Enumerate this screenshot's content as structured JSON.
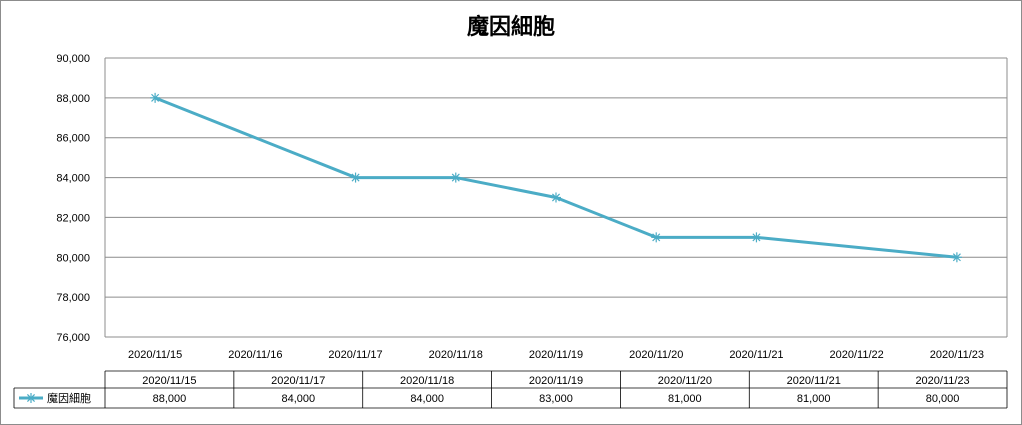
{
  "chart_data": {
    "type": "line",
    "title": "魔因細胞",
    "xlabel": "",
    "ylabel": "",
    "x": [
      "2020/11/15",
      "2020/11/16",
      "2020/11/17",
      "2020/11/18",
      "2020/11/19",
      "2020/11/20",
      "2020/11/21",
      "2020/11/22",
      "2020/11/23"
    ],
    "ylim": [
      76000,
      90000
    ],
    "y_ticks": [
      "76,000",
      "78,000",
      "80,000",
      "82,000",
      "84,000",
      "86,000",
      "88,000",
      "90,000"
    ],
    "grid": true,
    "legend": "data-table",
    "series": [
      {
        "name": "魔因細胞",
        "color": "#4bacc6",
        "marker": "asterisk",
        "points": [
          {
            "x": "2020/11/15",
            "y": 88000
          },
          {
            "x": "2020/11/17",
            "y": 84000
          },
          {
            "x": "2020/11/18",
            "y": 84000
          },
          {
            "x": "2020/11/19",
            "y": 83000
          },
          {
            "x": "2020/11/20",
            "y": 81000
          },
          {
            "x": "2020/11/21",
            "y": 81000
          },
          {
            "x": "2020/11/23",
            "y": 80000
          }
        ]
      }
    ],
    "data_table": {
      "headers": [
        "2020/11/15",
        "2020/11/17",
        "2020/11/18",
        "2020/11/19",
        "2020/11/20",
        "2020/11/21",
        "2020/11/23"
      ],
      "values": [
        "88,000",
        "84,000",
        "84,000",
        "83,000",
        "81,000",
        "81,000",
        "80,000"
      ]
    }
  }
}
